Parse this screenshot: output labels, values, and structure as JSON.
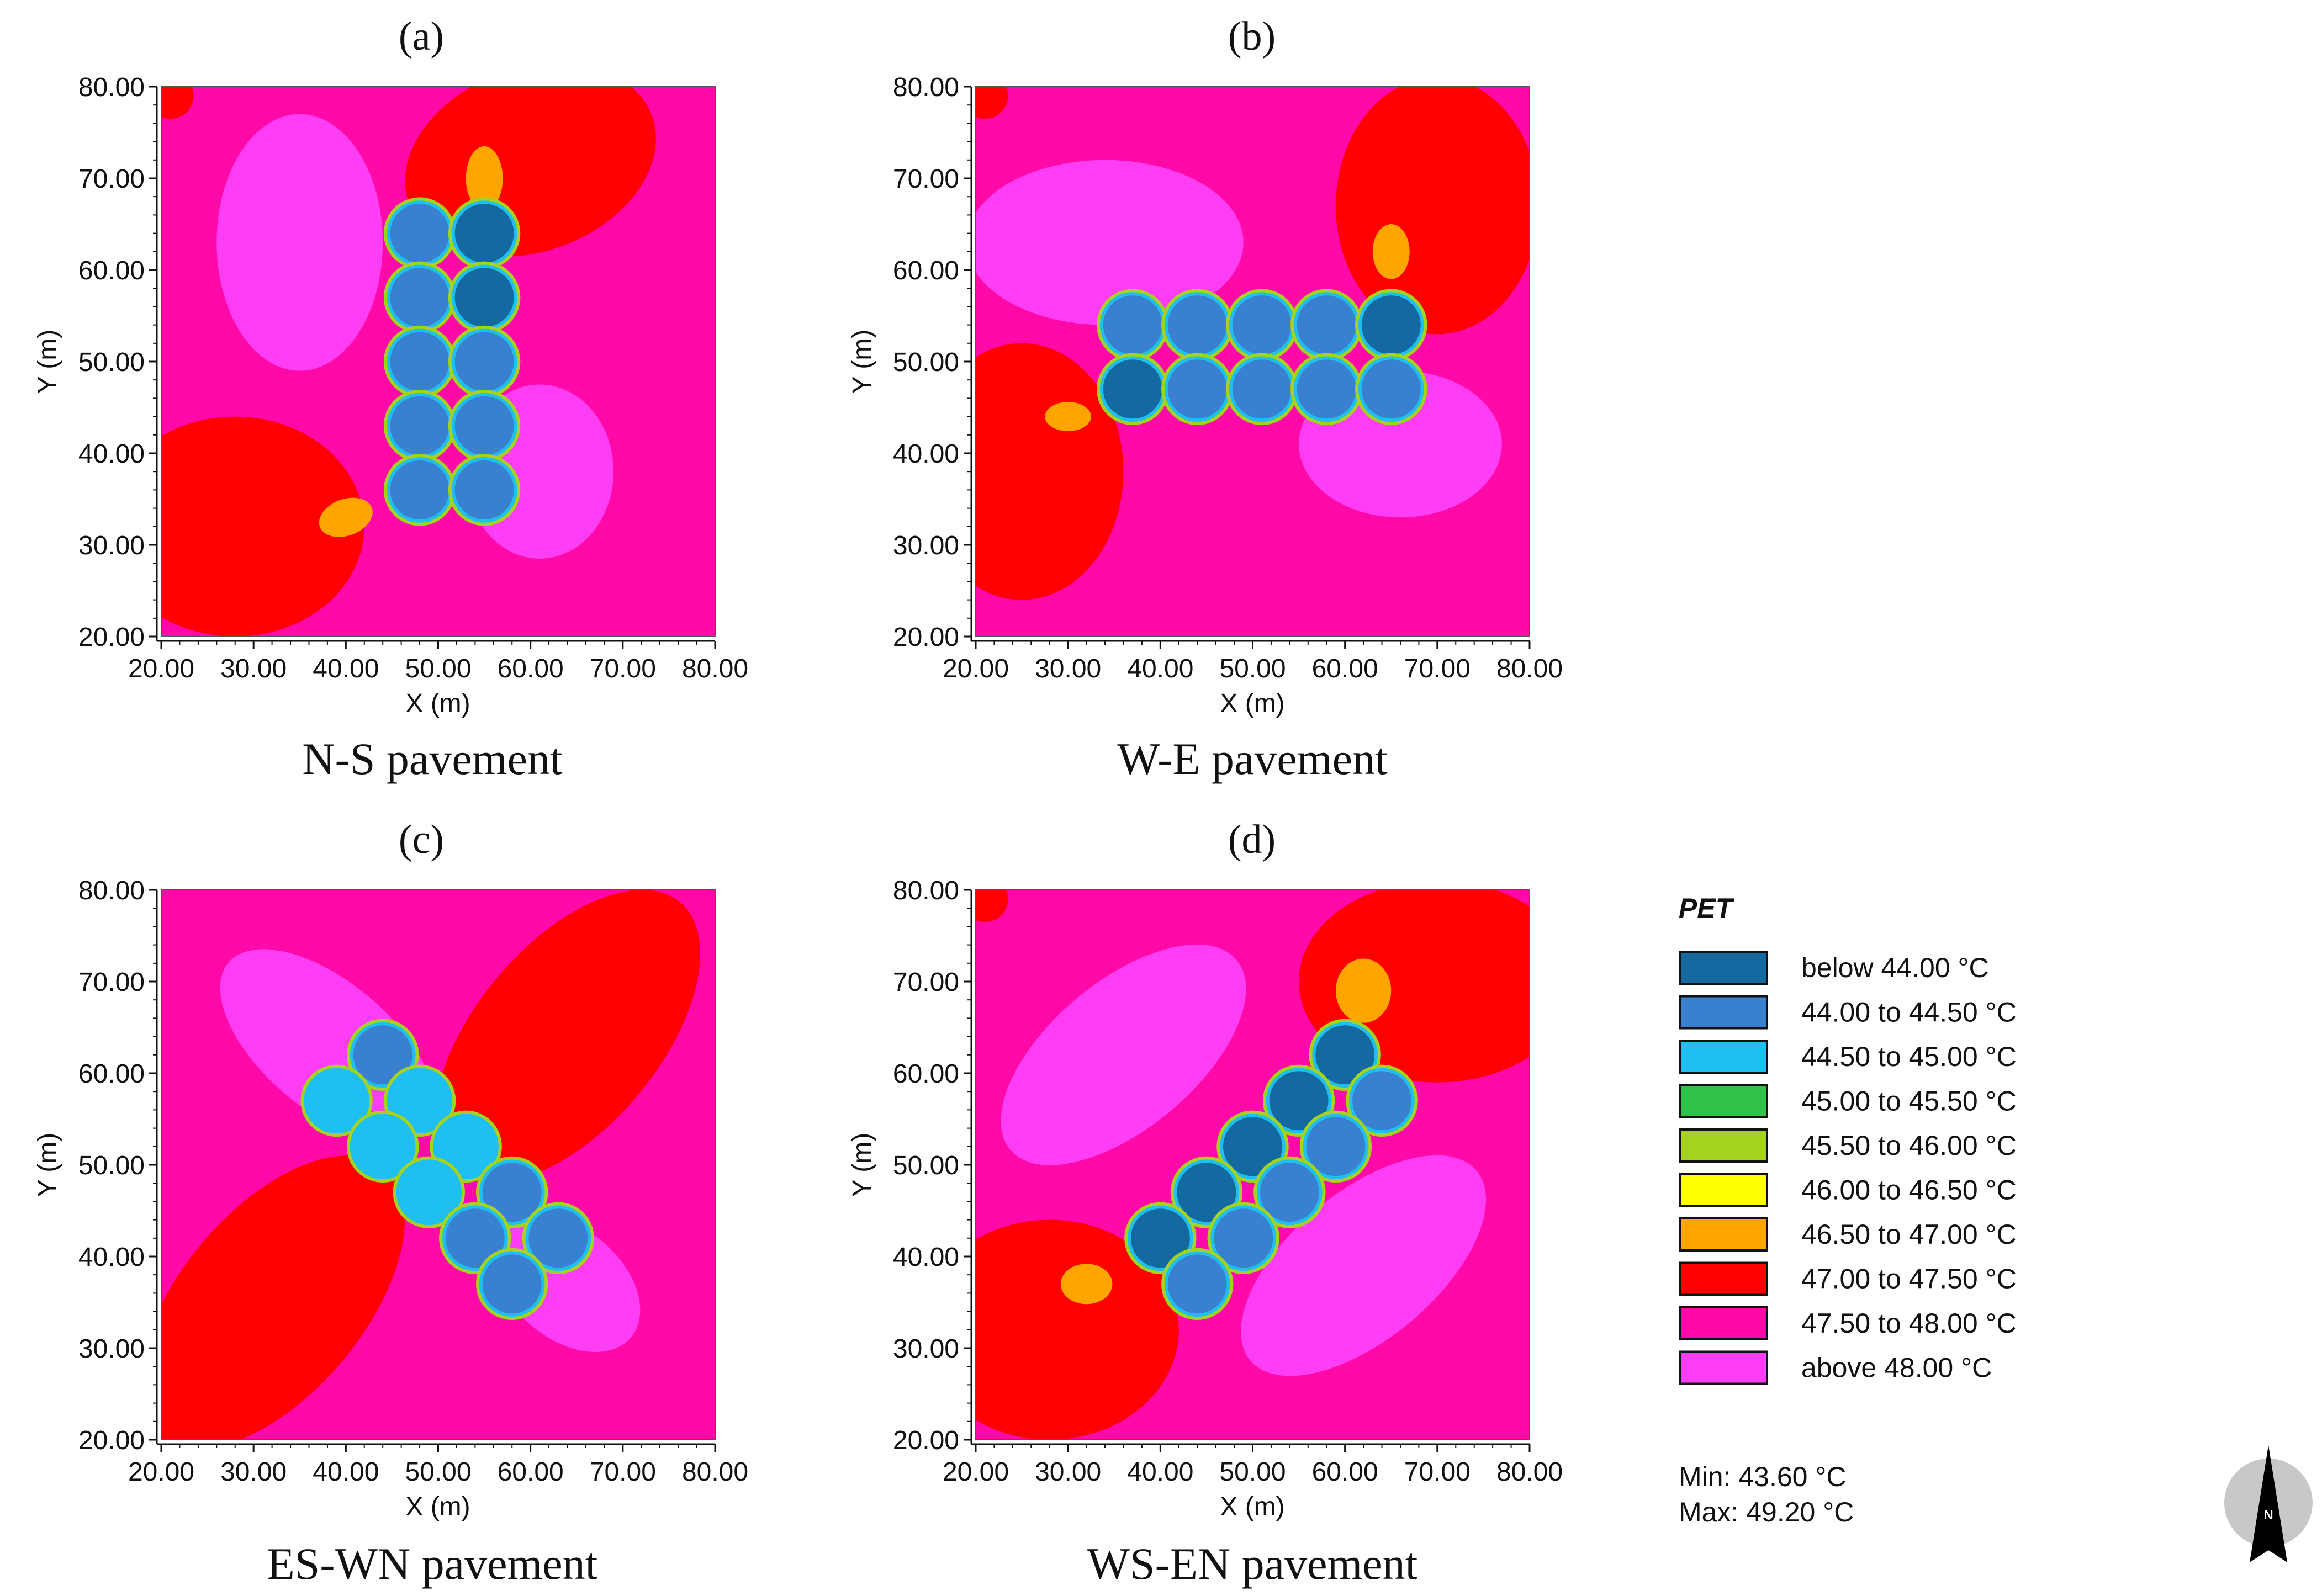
{
  "chart_data": [
    {
      "type": "heatmap",
      "label": "(a)",
      "caption": "N-S pavement",
      "xlabel": "X (m)",
      "ylabel": "Y (m)",
      "xlim": [
        20,
        80
      ],
      "ylim": [
        20,
        80
      ],
      "xticks": [
        "20.00",
        "30.00",
        "40.00",
        "50.00",
        "60.00",
        "70.00",
        "80.00"
      ],
      "yticks": [
        "20.00",
        "30.00",
        "40.00",
        "50.00",
        "60.00",
        "70.00",
        "80.00"
      ],
      "background_class": "47.50 to 48.00 °C",
      "zones": [
        {
          "name": "warm-zone-north-east",
          "class": "47.00 to 47.50 °C",
          "cx": 60,
          "cy": 72,
          "rx": 14,
          "ry": 10,
          "angle": 20
        },
        {
          "name": "warm-zone-south-west",
          "class": "47.00 to 47.50 °C",
          "cx": 28,
          "cy": 32,
          "rx": 14,
          "ry": 12,
          "angle": 0
        },
        {
          "name": "warm-corner-north-west",
          "class": "47.00 to 47.50 °C",
          "cx": 21,
          "cy": 79,
          "rx": 2.5,
          "ry": 2.5,
          "angle": 0
        },
        {
          "name": "hot-spot-north",
          "class": "46.50 to 47.00 °C",
          "cx": 55,
          "cy": 70,
          "rx": 2,
          "ry": 3.5,
          "angle": 0
        },
        {
          "name": "hot-spot-south",
          "class": "46.50 to 47.00 °C",
          "cx": 40,
          "cy": 33,
          "rx": 3,
          "ry": 2,
          "angle": 20
        },
        {
          "name": "cool-zone-north-west",
          "class": "above 48.00 °C",
          "cx": 35,
          "cy": 63,
          "rx": 9,
          "ry": 14,
          "angle": 0
        },
        {
          "name": "cool-zone-south-east",
          "class": "above 48.00 °C",
          "cx": 61,
          "cy": 38,
          "rx": 8,
          "ry": 9.5,
          "angle": 0
        }
      ],
      "trees": [
        {
          "x": 48,
          "y": 64,
          "class": "44.00 to 44.50 °C"
        },
        {
          "x": 55,
          "y": 64,
          "class": "below 44.00 °C"
        },
        {
          "x": 48,
          "y": 57,
          "class": "44.00 to 44.50 °C"
        },
        {
          "x": 55,
          "y": 57,
          "class": "below 44.00 °C"
        },
        {
          "x": 48,
          "y": 50,
          "class": "44.00 to 44.50 °C"
        },
        {
          "x": 55,
          "y": 50,
          "class": "44.00 to 44.50 °C"
        },
        {
          "x": 48,
          "y": 43,
          "class": "44.00 to 44.50 °C"
        },
        {
          "x": 55,
          "y": 43,
          "class": "44.00 to 44.50 °C"
        },
        {
          "x": 48,
          "y": 36,
          "class": "44.00 to 44.50 °C"
        },
        {
          "x": 55,
          "y": 36,
          "class": "44.00 to 44.50 °C"
        }
      ]
    },
    {
      "type": "heatmap",
      "label": "(b)",
      "caption": "W-E pavement",
      "xlabel": "X (m)",
      "ylabel": "Y (m)",
      "xlim": [
        20,
        80
      ],
      "ylim": [
        20,
        80
      ],
      "xticks": [
        "20.00",
        "30.00",
        "40.00",
        "50.00",
        "60.00",
        "70.00",
        "80.00"
      ],
      "yticks": [
        "20.00",
        "30.00",
        "40.00",
        "50.00",
        "60.00",
        "70.00",
        "80.00"
      ],
      "background_class": "47.50 to 48.00 °C",
      "zones": [
        {
          "name": "warm-zone-north-east",
          "class": "47.00 to 47.50 °C",
          "cx": 70,
          "cy": 67,
          "rx": 11,
          "ry": 14,
          "angle": 0
        },
        {
          "name": "warm-zone-south-west",
          "class": "47.00 to 47.50 °C",
          "cx": 25,
          "cy": 38,
          "rx": 11,
          "ry": 14,
          "angle": 0
        },
        {
          "name": "warm-corner-north-west",
          "class": "47.00 to 47.50 °C",
          "cx": 21,
          "cy": 79,
          "rx": 2.5,
          "ry": 2.5,
          "angle": 0
        },
        {
          "name": "hot-spot-north",
          "class": "46.50 to 47.00 °C",
          "cx": 65,
          "cy": 62,
          "rx": 2,
          "ry": 3,
          "angle": 0
        },
        {
          "name": "hot-spot-south",
          "class": "46.50 to 47.00 °C",
          "cx": 30,
          "cy": 44,
          "rx": 2.5,
          "ry": 1.6,
          "angle": 0
        },
        {
          "name": "cool-zone-north-west",
          "class": "above 48.00 °C",
          "cx": 34,
          "cy": 63,
          "rx": 15,
          "ry": 9,
          "angle": 0
        },
        {
          "name": "cool-zone-south-east",
          "class": "above 48.00 °C",
          "cx": 66,
          "cy": 41,
          "rx": 11,
          "ry": 8,
          "angle": 0
        }
      ],
      "trees": [
        {
          "x": 37,
          "y": 54,
          "class": "44.00 to 44.50 °C"
        },
        {
          "x": 44,
          "y": 54,
          "class": "44.00 to 44.50 °C"
        },
        {
          "x": 51,
          "y": 54,
          "class": "44.00 to 44.50 °C"
        },
        {
          "x": 58,
          "y": 54,
          "class": "44.00 to 44.50 °C"
        },
        {
          "x": 65,
          "y": 54,
          "class": "below 44.00 °C"
        },
        {
          "x": 37,
          "y": 47,
          "class": "below 44.00 °C"
        },
        {
          "x": 44,
          "y": 47,
          "class": "44.00 to 44.50 °C"
        },
        {
          "x": 51,
          "y": 47,
          "class": "44.00 to 44.50 °C"
        },
        {
          "x": 58,
          "y": 47,
          "class": "44.00 to 44.50 °C"
        },
        {
          "x": 65,
          "y": 47,
          "class": "44.00 to 44.50 °C"
        }
      ]
    },
    {
      "type": "heatmap",
      "label": "(c)",
      "caption": "ES-WN pavement",
      "xlabel": "X (m)",
      "ylabel": "Y (m)",
      "xlim": [
        20,
        80
      ],
      "ylim": [
        20,
        80
      ],
      "xticks": [
        "20.00",
        "30.00",
        "40.00",
        "50.00",
        "60.00",
        "70.00",
        "80.00"
      ],
      "yticks": [
        "20.00",
        "30.00",
        "40.00",
        "50.00",
        "60.00",
        "70.00",
        "80.00"
      ],
      "background_class": "47.50 to 48.00 °C",
      "zones": [
        {
          "name": "warm-zone-north-east",
          "class": "47.00 to 47.50 °C",
          "cx": 64,
          "cy": 64,
          "rx": 19,
          "ry": 10,
          "angle": 50
        },
        {
          "name": "warm-zone-south-west",
          "class": "47.00 to 47.50 °C",
          "cx": 32,
          "cy": 35,
          "rx": 19,
          "ry": 10,
          "angle": 50
        },
        {
          "name": "cool-zone-north-west",
          "class": "above 48.00 °C",
          "cx": 38,
          "cy": 63,
          "rx": 14,
          "ry": 7,
          "angle": -40
        },
        {
          "name": "cool-zone-south-east",
          "class": "above 48.00 °C",
          "cx": 64,
          "cy": 37,
          "rx": 9,
          "ry": 6,
          "angle": -40
        }
      ],
      "trees": [
        {
          "x": 44,
          "y": 62,
          "class": "44.00 to 44.50 °C"
        },
        {
          "x": 39,
          "y": 57,
          "class": "44.50 to 45.00 °C"
        },
        {
          "x": 48,
          "y": 57,
          "class": "44.50 to 45.00 °C"
        },
        {
          "x": 44,
          "y": 52,
          "class": "44.50 to 45.00 °C"
        },
        {
          "x": 53,
          "y": 52,
          "class": "44.50 to 45.00 °C"
        },
        {
          "x": 49,
          "y": 47,
          "class": "44.50 to 45.00 °C"
        },
        {
          "x": 58,
          "y": 47,
          "class": "44.00 to 44.50 °C"
        },
        {
          "x": 54,
          "y": 42,
          "class": "44.00 to 44.50 °C"
        },
        {
          "x": 63,
          "y": 42,
          "class": "44.00 to 44.50 °C"
        },
        {
          "x": 58,
          "y": 37,
          "class": "44.00 to 44.50 °C"
        }
      ]
    },
    {
      "type": "heatmap",
      "label": "(d)",
      "caption": "WS-EN pavement",
      "xlabel": "X (m)",
      "ylabel": "Y (m)",
      "xlim": [
        20,
        80
      ],
      "ylim": [
        20,
        80
      ],
      "xticks": [
        "20.00",
        "30.00",
        "40.00",
        "50.00",
        "60.00",
        "70.00",
        "80.00"
      ],
      "yticks": [
        "20.00",
        "30.00",
        "40.00",
        "50.00",
        "60.00",
        "70.00",
        "80.00"
      ],
      "background_class": "47.50 to 48.00 °C",
      "zones": [
        {
          "name": "warm-zone-north-east",
          "class": "47.00 to 47.50 °C",
          "cx": 70,
          "cy": 70,
          "rx": 15,
          "ry": 11,
          "angle": 0
        },
        {
          "name": "warm-zone-south-west",
          "class": "47.00 to 47.50 °C",
          "cx": 28,
          "cy": 32,
          "rx": 14,
          "ry": 12,
          "angle": 0
        },
        {
          "name": "warm-corner-north-west",
          "class": "47.00 to 47.50 °C",
          "cx": 21,
          "cy": 79,
          "rx": 2.5,
          "ry": 2.5,
          "angle": 0
        },
        {
          "name": "hot-spot-north",
          "class": "46.50 to 47.00 °C",
          "cx": 62,
          "cy": 69,
          "rx": 3,
          "ry": 3.5,
          "angle": 0
        },
        {
          "name": "hot-spot-south",
          "class": "46.50 to 47.00 °C",
          "cx": 32,
          "cy": 37,
          "rx": 2.8,
          "ry": 2.2,
          "angle": 0
        },
        {
          "name": "cool-zone-north-west",
          "class": "above 48.00 °C",
          "cx": 36,
          "cy": 62,
          "rx": 16,
          "ry": 8,
          "angle": 40
        },
        {
          "name": "cool-zone-south-east",
          "class": "above 48.00 °C",
          "cx": 62,
          "cy": 39,
          "rx": 16,
          "ry": 8,
          "angle": 40
        }
      ],
      "trees": [
        {
          "x": 60,
          "y": 62,
          "class": "below 44.00 °C"
        },
        {
          "x": 55,
          "y": 57,
          "class": "below 44.00 °C"
        },
        {
          "x": 64,
          "y": 57,
          "class": "44.00 to 44.50 °C"
        },
        {
          "x": 50,
          "y": 52,
          "class": "below 44.00 °C"
        },
        {
          "x": 59,
          "y": 52,
          "class": "44.00 to 44.50 °C"
        },
        {
          "x": 45,
          "y": 47,
          "class": "below 44.00 °C"
        },
        {
          "x": 54,
          "y": 47,
          "class": "44.00 to 44.50 °C"
        },
        {
          "x": 40,
          "y": 42,
          "class": "below 44.00 °C"
        },
        {
          "x": 49,
          "y": 42,
          "class": "44.00 to 44.50 °C"
        },
        {
          "x": 44,
          "y": 37,
          "class": "44.00 to 44.50 °C"
        }
      ]
    }
  ],
  "legend": {
    "title": "PET",
    "items": [
      {
        "label": "below 44.00 °C",
        "color": "#1369A0"
      },
      {
        "label": "44.00 to 44.50 °C",
        "color": "#3A80D0"
      },
      {
        "label": "44.50 to 45.00 °C",
        "color": "#1EC0F2"
      },
      {
        "label": "45.00 to 45.50 °C",
        "color": "#2FC14A"
      },
      {
        "label": "45.50 to 46.00 °C",
        "color": "#A5D21E"
      },
      {
        "label": "46.00 to 46.50 °C",
        "color": "#FFFF00"
      },
      {
        "label": "46.50 to 47.00 °C",
        "color": "#FFA500"
      },
      {
        "label": "47.00 to 47.50 °C",
        "color": "#FF0000"
      },
      {
        "label": "47.50 to 48.00 °C",
        "color": "#FF0AA8"
      },
      {
        "label": "above 48.00 °C",
        "color": "#FF3DF5"
      }
    ],
    "min": "Min: 43.60 °C",
    "max": "Max: 49.20 °C"
  },
  "compass": {
    "icon": "north-arrow-icon",
    "letter": "N"
  }
}
